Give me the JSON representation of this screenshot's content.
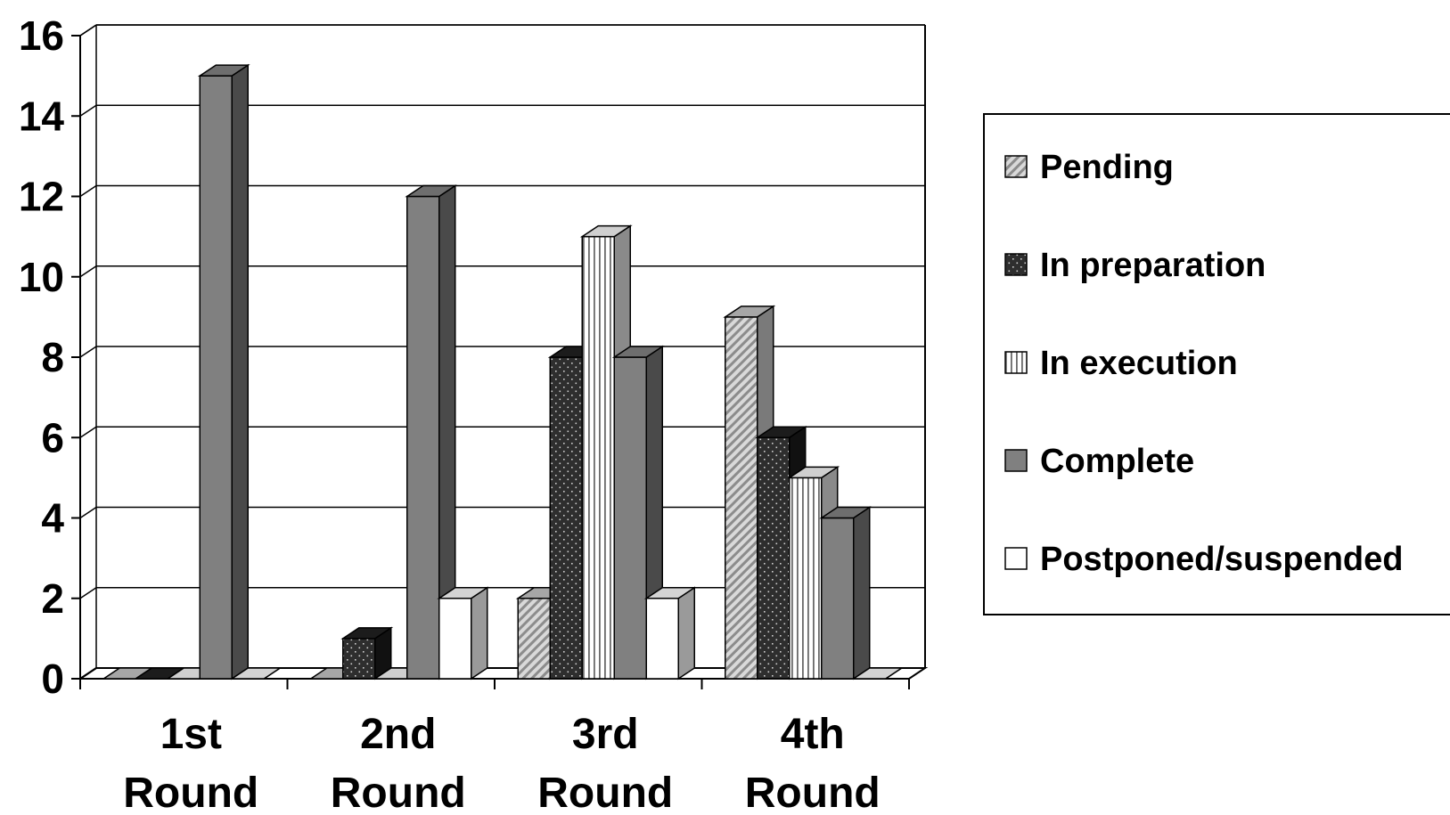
{
  "chart_data": {
    "type": "bar",
    "title": "",
    "xlabel": "",
    "ylabel": "",
    "ylim": [
      0,
      16
    ],
    "yticks": [
      "0",
      "2",
      "4",
      "6",
      "8",
      "10",
      "12",
      "14",
      "16"
    ],
    "grid": true,
    "legend_position": "right",
    "categories": [
      [
        "1st",
        "Round"
      ],
      [
        "2nd",
        "Round"
      ],
      [
        "3rd",
        "Round"
      ],
      [
        "4th",
        "Round"
      ]
    ],
    "series": [
      {
        "name": "Pending",
        "pattern": "diagonal",
        "values": [
          0,
          0,
          2,
          9
        ]
      },
      {
        "name": "In preparation",
        "pattern": "dots",
        "values": [
          0,
          1,
          8,
          6
        ]
      },
      {
        "name": "In execution",
        "pattern": "vertical",
        "values": [
          0,
          0,
          11,
          5
        ]
      },
      {
        "name": "Complete",
        "pattern": "solid",
        "values": [
          15,
          12,
          8,
          4
        ]
      },
      {
        "name": "Postponed/suspended",
        "pattern": "white",
        "values": [
          0,
          2,
          2,
          0
        ]
      }
    ],
    "colors": {
      "complete_front": "#808080",
      "complete_side": "#4a4a4a",
      "dark_front": "#2e2e2e",
      "gridline": "#000000"
    }
  }
}
